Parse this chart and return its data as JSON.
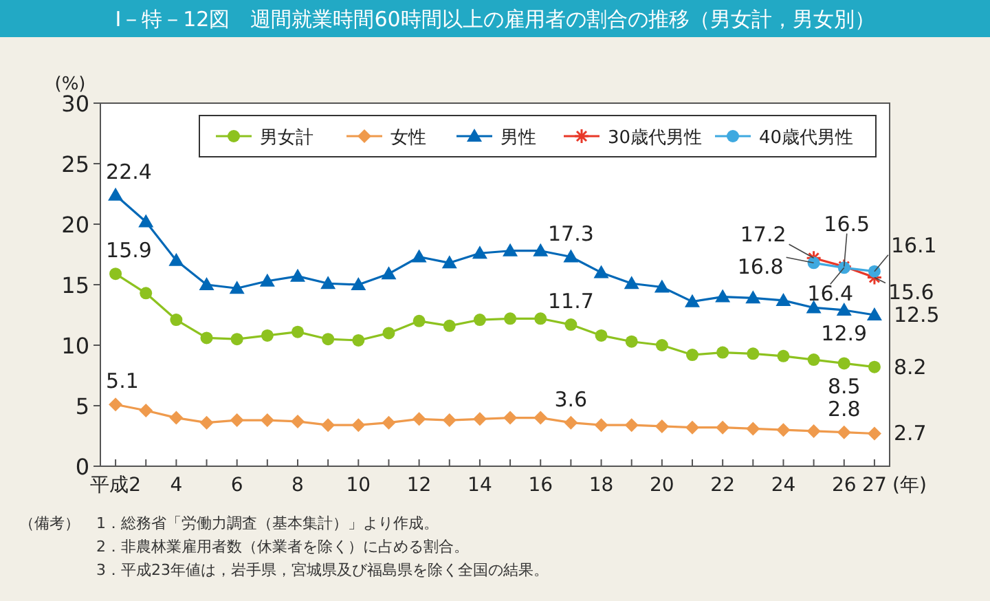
{
  "chart_data": {
    "type": "line",
    "title": "Ⅰ－特－12図　週間就業時間60時間以上の雇用者の割合の推移（男女計，男女別）",
    "ylabel": "(%)",
    "xlabel": "(年)",
    "categories": [
      "平成2",
      null,
      "4",
      null,
      "6",
      null,
      "8",
      null,
      "10",
      null,
      "12",
      null,
      "14",
      null,
      "16",
      null,
      "18",
      null,
      "20",
      null,
      "22",
      null,
      "24",
      null,
      "26",
      "27"
    ],
    "ylim": [
      0,
      30
    ],
    "yticks": [
      0,
      5,
      10,
      15,
      20,
      25,
      30
    ],
    "grid": false,
    "legend": "top",
    "series": [
      {
        "name": "男女計",
        "color": "#8dc21f",
        "marker": "circle",
        "values": [
          15.9,
          14.3,
          12.1,
          10.6,
          10.5,
          10.8,
          11.1,
          10.5,
          10.4,
          11.0,
          12.0,
          11.6,
          12.1,
          12.2,
          12.2,
          11.7,
          10.8,
          10.3,
          10.0,
          9.2,
          9.4,
          9.3,
          9.1,
          8.8,
          8.5,
          8.2
        ],
        "value_labels": [
          "15.9",
          null,
          null,
          null,
          null,
          null,
          null,
          null,
          null,
          null,
          null,
          null,
          null,
          null,
          null,
          "11.7",
          null,
          null,
          null,
          null,
          null,
          null,
          null,
          null,
          "8.5",
          "8.2"
        ]
      },
      {
        "name": "女性",
        "color": "#ef9a4c",
        "marker": "diamond",
        "values": [
          5.1,
          4.6,
          4.0,
          3.6,
          3.8,
          3.8,
          3.7,
          3.4,
          3.4,
          3.6,
          3.9,
          3.8,
          3.9,
          4.0,
          4.0,
          3.6,
          3.4,
          3.4,
          3.3,
          3.2,
          3.2,
          3.1,
          3.0,
          2.9,
          2.8,
          2.7
        ],
        "value_labels": [
          "5.1",
          null,
          null,
          null,
          null,
          null,
          null,
          null,
          null,
          null,
          null,
          null,
          null,
          null,
          null,
          "3.6",
          null,
          null,
          null,
          null,
          null,
          null,
          null,
          null,
          "2.8",
          "2.7"
        ]
      },
      {
        "name": "男性",
        "color": "#0068b7",
        "marker": "triangle",
        "values": [
          22.4,
          20.2,
          17.0,
          15.0,
          14.7,
          15.3,
          15.7,
          15.1,
          15.0,
          15.9,
          17.3,
          16.8,
          17.6,
          17.8,
          17.8,
          17.3,
          16.0,
          15.1,
          14.8,
          13.6,
          14.0,
          13.9,
          13.7,
          13.1,
          12.9,
          12.5
        ],
        "value_labels": [
          "22.4",
          null,
          null,
          null,
          null,
          null,
          null,
          null,
          null,
          null,
          null,
          null,
          null,
          null,
          null,
          "17.3",
          null,
          null,
          null,
          null,
          null,
          null,
          null,
          null,
          "12.9",
          "12.5"
        ]
      },
      {
        "name": "30歳代男性",
        "color": "#e83828",
        "marker": "cross",
        "values": [
          null,
          null,
          null,
          null,
          null,
          null,
          null,
          null,
          null,
          null,
          null,
          null,
          null,
          null,
          null,
          null,
          null,
          null,
          null,
          null,
          null,
          null,
          null,
          17.2,
          16.5,
          15.6
        ],
        "value_labels": [
          null,
          null,
          null,
          null,
          null,
          null,
          null,
          null,
          null,
          null,
          null,
          null,
          null,
          null,
          null,
          null,
          null,
          null,
          null,
          null,
          null,
          null,
          null,
          "17.2",
          "16.5",
          "15.6"
        ]
      },
      {
        "name": "40歳代男性",
        "color": "#3fa9e0",
        "marker": "circle",
        "values": [
          null,
          null,
          null,
          null,
          null,
          null,
          null,
          null,
          null,
          null,
          null,
          null,
          null,
          null,
          null,
          null,
          null,
          null,
          null,
          null,
          null,
          null,
          null,
          16.8,
          16.4,
          16.1
        ],
        "value_labels": [
          null,
          null,
          null,
          null,
          null,
          null,
          null,
          null,
          null,
          null,
          null,
          null,
          null,
          null,
          null,
          null,
          null,
          null,
          null,
          null,
          null,
          null,
          null,
          "16.8",
          "16.4",
          "16.1"
        ]
      }
    ],
    "annotations": [
      "（備考）",
      "1．総務省「労働力調査（基本集計）」より作成。",
      "2．非農林業雇用者数（休業者を除く）に占める割合。",
      "3．平成23年値は，岩手県，宮城県及び福島県を除く全国の結果。"
    ]
  }
}
